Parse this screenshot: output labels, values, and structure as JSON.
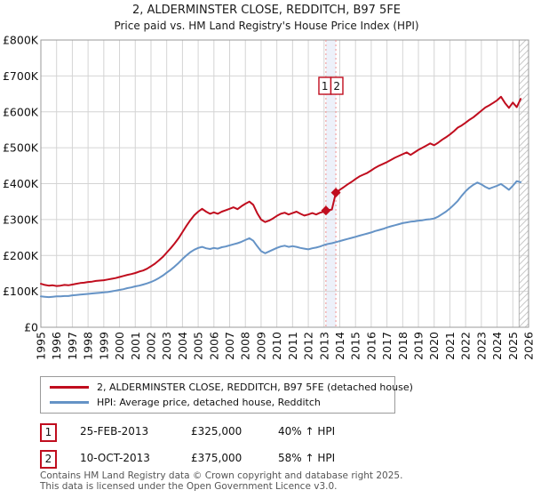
{
  "title": "2, ALDERMINSTER CLOSE, REDDITCH, B97 5FE",
  "subtitle": "Price paid vs. HM Land Registry's House Price Index (HPI)",
  "chart_data": {
    "type": "line",
    "title": "2, ALDERMINSTER CLOSE, REDDITCH, B97 5FE",
    "subtitle": "Price paid vs. HM Land Registry's House Price Index (HPI)",
    "values_unit": "GBP thousands",
    "x_start": 1995.0,
    "x_step": 0.25,
    "x_end": 2025.5,
    "xlim": [
      1995,
      2026
    ],
    "ylim": [
      0,
      800
    ],
    "grid": true,
    "xtick_labels": [
      "1995",
      "1996",
      "1997",
      "1998",
      "1999",
      "2000",
      "2001",
      "2002",
      "2003",
      "2004",
      "2005",
      "2006",
      "2007",
      "2008",
      "2009",
      "2010",
      "2011",
      "2012",
      "2013",
      "2014",
      "2015",
      "2016",
      "2017",
      "2018",
      "2019",
      "2020",
      "2021",
      "2022",
      "2023",
      "2024",
      "2025",
      "2026"
    ],
    "xtick_values": [
      1995,
      1996,
      1997,
      1998,
      1999,
      2000,
      2001,
      2002,
      2003,
      2004,
      2005,
      2006,
      2007,
      2008,
      2009,
      2010,
      2011,
      2012,
      2013,
      2014,
      2015,
      2016,
      2017,
      2018,
      2019,
      2020,
      2021,
      2022,
      2023,
      2024,
      2025,
      2026
    ],
    "ytick_values": [
      0,
      100,
      200,
      300,
      400,
      500,
      600,
      700,
      800
    ],
    "ytick_labels": [
      "£0",
      "£100K",
      "£200K",
      "£300K",
      "£400K",
      "£500K",
      "£600K",
      "£700K",
      "£800K"
    ],
    "series": [
      {
        "name": "2, ALDERMINSTER CLOSE, REDDITCH, B97 5FE (detached house)",
        "color": "#c00d1e",
        "values": [
          121,
          118,
          116,
          117,
          115,
          116,
          118,
          117,
          119,
          121,
          123,
          124,
          126,
          127,
          129,
          130,
          131,
          133,
          135,
          137,
          140,
          143,
          146,
          148,
          151,
          155,
          158,
          163,
          170,
          177,
          186,
          196,
          208,
          220,
          233,
          248,
          265,
          282,
          298,
          312,
          322,
          330,
          322,
          316,
          320,
          316,
          322,
          326,
          330,
          334,
          329,
          337,
          344,
          350,
          341,
          318,
          300,
          293,
          297,
          303,
          310,
          316,
          319,
          314,
          318,
          322,
          316,
          311,
          314,
          318,
          314,
          319,
          322,
          326,
          328,
          375,
          383,
          390,
          398,
          405,
          413,
          420,
          425,
          430,
          437,
          444,
          450,
          455,
          460,
          466,
          472,
          477,
          482,
          487,
          480,
          487,
          494,
          500,
          506,
          512,
          507,
          514,
          522,
          529,
          537,
          546,
          556,
          562,
          570,
          578,
          585,
          594,
          603,
          612,
          618,
          625,
          632,
          642,
          625,
          611,
          626,
          613,
          636
        ]
      },
      {
        "name": "HPI: Average price, detached house, Redditch",
        "color": "#6593c6",
        "values": [
          86,
          85,
          84,
          85,
          86,
          86,
          87,
          87,
          89,
          90,
          91,
          92,
          93,
          94,
          95,
          96,
          97,
          98,
          100,
          102,
          104,
          106,
          109,
          111,
          114,
          116,
          119,
          122,
          126,
          131,
          137,
          144,
          152,
          160,
          169,
          179,
          190,
          200,
          209,
          216,
          221,
          224,
          220,
          218,
          221,
          219,
          223,
          225,
          228,
          231,
          234,
          238,
          243,
          248,
          241,
          226,
          212,
          206,
          211,
          216,
          221,
          225,
          227,
          224,
          226,
          224,
          221,
          219,
          217,
          220,
          222,
          225,
          229,
          232,
          234,
          237,
          240,
          243,
          246,
          249,
          252,
          255,
          258,
          261,
          264,
          268,
          271,
          274,
          278,
          281,
          284,
          287,
          290,
          292,
          294,
          295,
          297,
          298,
          300,
          301,
          303,
          308,
          315,
          322,
          331,
          341,
          352,
          366,
          379,
          389,
          397,
          403,
          398,
          391,
          386,
          390,
          394,
          399,
          391,
          383,
          394,
          407,
          404
        ]
      }
    ],
    "markers": [
      {
        "label": "1",
        "x": 2013.12,
        "value": 325
      },
      {
        "label": "2",
        "x": 2013.75,
        "value": 375
      }
    ],
    "band": {
      "x1": 2013.12,
      "x2": 2013.75,
      "fill": "#edf1fa",
      "edge": "#f09090"
    },
    "hatch_from": 2025.4,
    "colors": {
      "grid": "#d4d4d4",
      "plot_border": "#9a9a9a",
      "hatch": "#c9c9c9",
      "tick_text": "#111111"
    },
    "legend_position": "below"
  },
  "legend": {
    "items": [
      {
        "label": "2, ALDERMINSTER CLOSE, REDDITCH, B97 5FE (detached house)"
      },
      {
        "label": "HPI: Average price, detached house, Redditch"
      }
    ]
  },
  "transactions": [
    {
      "num": "1",
      "date": "25-FEB-2013",
      "price": "£325,000",
      "hpi": "40% ↑ HPI"
    },
    {
      "num": "2",
      "date": "10-OCT-2013",
      "price": "£375,000",
      "hpi": "58% ↑ HPI"
    }
  ],
  "footer": {
    "line1": "Contains HM Land Registry data © Crown copyright and database right 2025.",
    "line2": "This data is licensed under the Open Government Licence v3.0."
  }
}
